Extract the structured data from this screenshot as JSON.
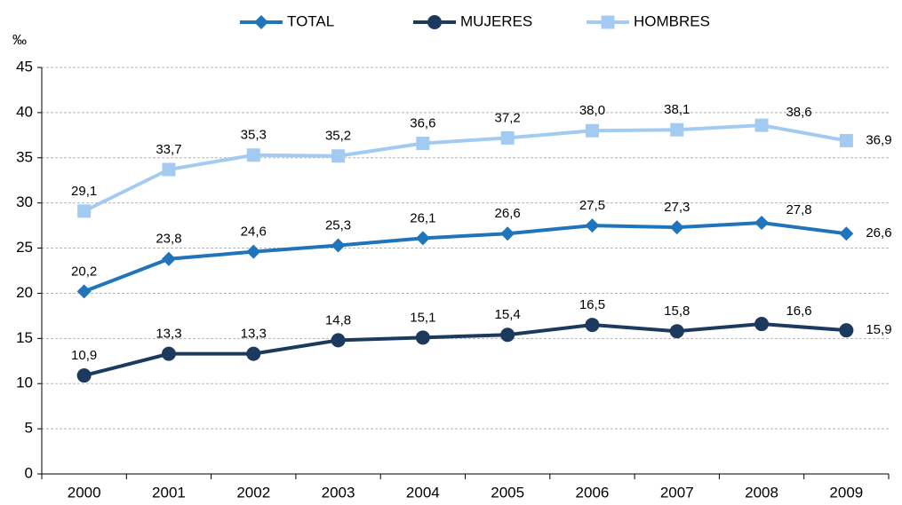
{
  "chart_data": {
    "type": "line",
    "y_label": "‰",
    "categories": [
      "2000",
      "2001",
      "2002",
      "2003",
      "2004",
      "2005",
      "2006",
      "2007",
      "2008",
      "2009"
    ],
    "series": [
      {
        "name": "TOTAL",
        "color": "#1f74bc",
        "marker": "diamond",
        "values": [
          20.2,
          23.8,
          24.6,
          25.3,
          26.1,
          26.6,
          27.5,
          27.3,
          27.8,
          26.6
        ],
        "value_labels": [
          "20,2",
          "23,8",
          "24,6",
          "25,3",
          "26,1",
          "26,6",
          "27,5",
          "27,3",
          "27,8",
          "26,6"
        ]
      },
      {
        "name": "MUJERES",
        "color": "#1b3a5e",
        "marker": "circle",
        "values": [
          10.9,
          13.3,
          13.3,
          14.8,
          15.1,
          15.4,
          16.5,
          15.8,
          16.6,
          15.9
        ],
        "value_labels": [
          "10,9",
          "13,3",
          "13,3",
          "14,8",
          "15,1",
          "15,4",
          "16,5",
          "15,8",
          "16,6",
          "15,9"
        ]
      },
      {
        "name": "HOMBRES",
        "color": "#a3cbf2",
        "marker": "square",
        "values": [
          29.1,
          33.7,
          35.3,
          35.2,
          36.6,
          37.2,
          38.0,
          38.1,
          38.6,
          36.9
        ],
        "value_labels": [
          "29,1",
          "33,7",
          "35,3",
          "35,2",
          "36,6",
          "37,2",
          "38,0",
          "38,1",
          "38,6",
          "36,9"
        ]
      }
    ],
    "ylim": [
      0,
      45
    ],
    "yticks": [
      0,
      5,
      10,
      15,
      20,
      25,
      30,
      35,
      40,
      45
    ],
    "grid": true,
    "legend": "top"
  }
}
